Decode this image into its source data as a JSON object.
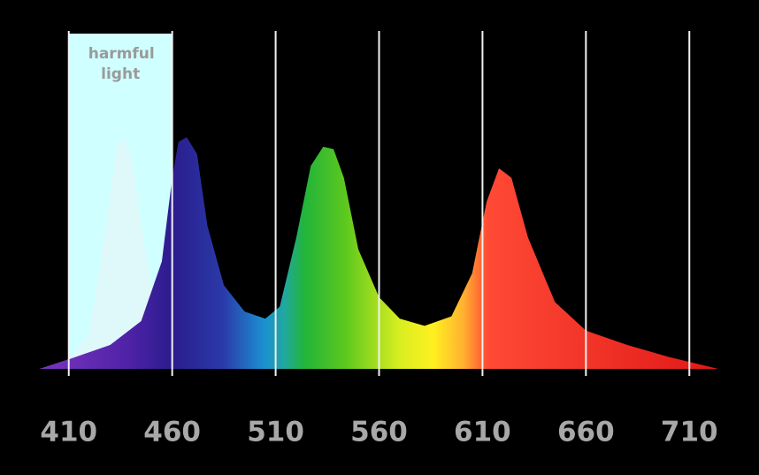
{
  "chart_data": {
    "type": "area",
    "x": [
      396,
      410,
      430,
      445,
      455,
      460,
      463,
      467,
      472,
      477,
      485,
      495,
      505,
      512,
      520,
      527,
      533,
      538,
      543,
      550,
      560,
      570,
      582,
      595,
      605,
      612,
      618,
      624,
      632,
      645,
      660,
      680,
      700,
      724
    ],
    "series": [
      {
        "values": [
          0,
          4,
          10,
          20,
          45,
          80,
          95,
          97,
          90,
          60,
          35,
          24,
          21,
          26,
          55,
          85,
          93,
          92,
          80,
          50,
          30,
          21,
          18,
          22,
          40,
          70,
          84,
          80,
          55,
          28,
          16,
          10,
          5,
          0
        ]
      },
      {
        "color": "#e4f6f8",
        "x": [
          396,
          410,
          420,
          428,
          433,
          436,
          440,
          446,
          452,
          460
        ],
        "values": [
          0,
          4,
          15,
          60,
          92,
          97,
          90,
          55,
          25,
          12
        ]
      }
    ],
    "xlim": [
      396,
      724
    ],
    "ylim": [
      0,
      100
    ],
    "xticks": [
      410,
      460,
      510,
      560,
      610,
      660,
      710
    ],
    "annotation": {
      "text": "harmful light",
      "x": [
        410,
        460
      ],
      "color": "#cfffff"
    },
    "grid": true
  }
}
